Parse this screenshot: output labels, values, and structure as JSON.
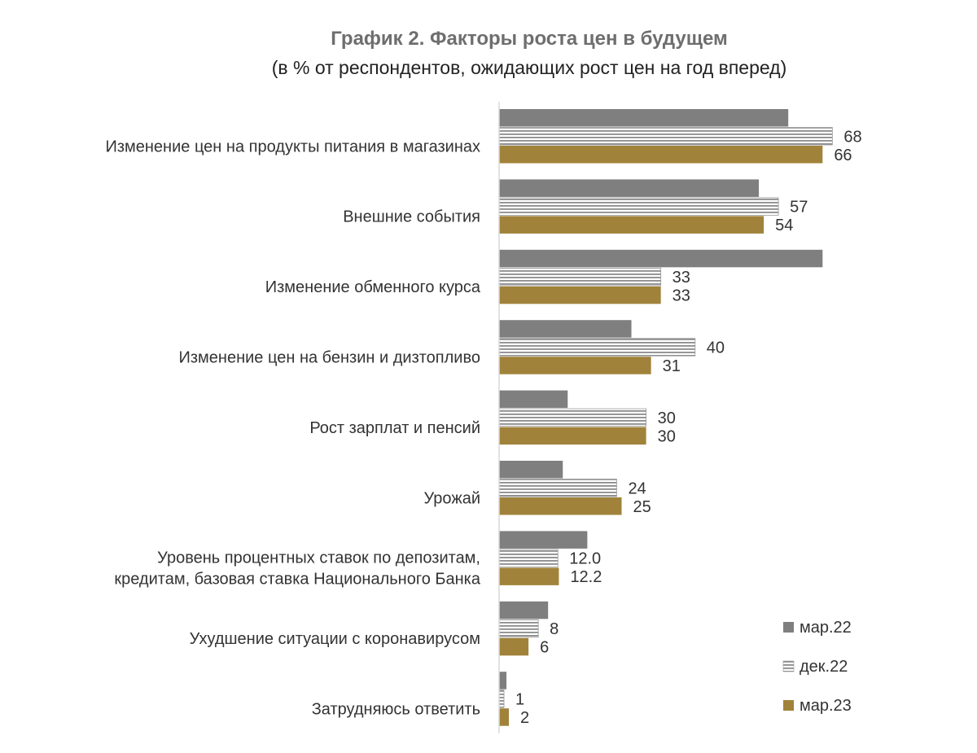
{
  "chart_data": {
    "type": "bar",
    "orientation": "horizontal",
    "title": "График 2. Факторы роста цен в будущем",
    "subtitle": "(в % от респондентов, ожидающих рост цен на год вперед)",
    "categories": [
      [
        "Изменение цен на продукты питания в магазинах"
      ],
      [
        "Внешние события"
      ],
      [
        "Изменение обменного курса"
      ],
      [
        "Изменение цен на бензин и дизтопливо"
      ],
      [
        "Рост зарплат и пенсий"
      ],
      [
        "Урожай"
      ],
      [
        "Уровень процентных ставок по депозитам,",
        "кредитам, базовая ставка Национального Банка"
      ],
      [
        "Ухудшение ситуации с коронавирусом"
      ],
      [
        "Затрудняюсь ответить"
      ]
    ],
    "series": [
      {
        "name": "мар.22",
        "color": "#7f7f7f",
        "pattern": "solid",
        "show_labels": false,
        "values": [
          59,
          53,
          66,
          27,
          14,
          13,
          18,
          10,
          1.5
        ],
        "labels": [
          "",
          "",
          "",
          "",
          "",
          "",
          "",
          "",
          ""
        ]
      },
      {
        "name": "дек.22",
        "color": "#8c8c8c",
        "pattern": "horizontal-lines",
        "show_labels": true,
        "values": [
          68,
          57,
          33,
          40,
          30,
          24,
          12.0,
          8,
          1
        ],
        "labels": [
          "68",
          "57",
          "33",
          "40",
          "30",
          "24",
          "12.0",
          "8",
          "1"
        ]
      },
      {
        "name": "мар.23",
        "color": "#a0823a",
        "pattern": "solid",
        "show_labels": true,
        "values": [
          66,
          54,
          33,
          31,
          30,
          25,
          12.2,
          6,
          2
        ],
        "labels": [
          "66",
          "54",
          "33",
          "31",
          "30",
          "25",
          "12.2",
          "6",
          "2"
        ]
      }
    ],
    "xlim": [
      0,
      70
    ],
    "grid": false,
    "legend_position": "bottom-right"
  }
}
